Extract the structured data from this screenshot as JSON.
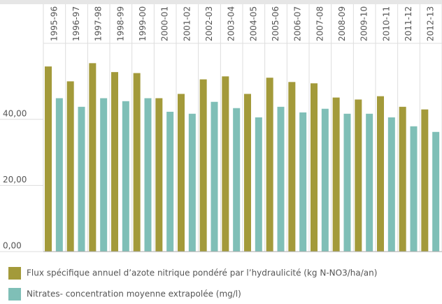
{
  "chart_data": {
    "type": "bar",
    "categories": [
      "1995-96",
      "1996-97",
      "1997-98",
      "1998-99",
      "1999-00",
      "2000-01",
      "2001-02",
      "2002-03",
      "2003-04",
      "2004-05",
      "2005-06",
      "2006-07",
      "2007-08",
      "2008-09",
      "2009-10",
      "2010-11",
      "2011-12",
      "2012-13"
    ],
    "series": [
      {
        "name": "Flux spécifique annuel d’azote nitrique pondéré par l’hydraulicité (kg N-NO3/ha/an)",
        "color": "#a39a3a",
        "values": [
          56,
          51.5,
          57,
          54.3,
          54,
          46.4,
          47.7,
          52.1,
          53,
          47.7,
          52.6,
          51.3,
          50.9,
          46.6,
          46,
          47,
          43.8,
          43
        ]
      },
      {
        "name": "Nitrates- concentration moyenne extrapolée (mg/l)",
        "color": "#7fbfb7",
        "values": [
          46.4,
          43.8,
          46.4,
          45.5,
          46.4,
          42.3,
          41.7,
          45.3,
          43.4,
          40.6,
          43.8,
          42.1,
          43.2,
          41.7,
          41.7,
          40.6,
          37.9,
          36.2
        ]
      }
    ],
    "ylim": [
      0,
      63
    ],
    "yticks": [
      {
        "value": 0,
        "label": "0,00"
      },
      {
        "value": 20,
        "label": "20,00"
      },
      {
        "value": 40,
        "label": "40,00"
      }
    ]
  }
}
